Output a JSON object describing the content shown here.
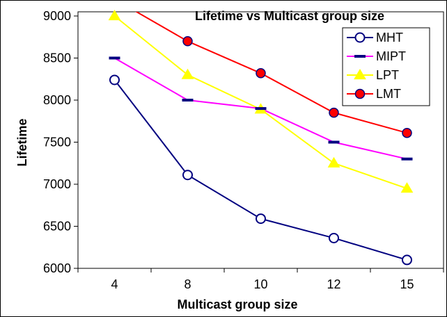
{
  "chart_data": {
    "type": "line",
    "title": "Lifetime vs Multicast group size",
    "xlabel": "Multicast group size",
    "ylabel": "Lifetime",
    "categories": [
      "4",
      "8",
      "10",
      "12",
      "15"
    ],
    "ylim": [
      6000,
      9000
    ],
    "yticks": [
      6000,
      6500,
      7000,
      7500,
      8000,
      8500,
      9000
    ],
    "grid": false,
    "legend_position": "top-right",
    "series": [
      {
        "name": "MHT",
        "values": [
          8240,
          7110,
          6590,
          6360,
          6100
        ],
        "color": "#000080",
        "marker": "open-circle"
      },
      {
        "name": "MIPT",
        "values": [
          8500,
          8000,
          7900,
          7500,
          7300
        ],
        "color": "#FF00FF",
        "marker": "dash"
      },
      {
        "name": "LPT",
        "values": [
          9000,
          8300,
          7890,
          7250,
          6950
        ],
        "color": "#FFFF00",
        "marker": "triangle"
      },
      {
        "name": "LMT",
        "values": [
          9200,
          8700,
          8320,
          7850,
          7610
        ],
        "color": "#FF0000",
        "marker": "filled-circle"
      }
    ]
  }
}
